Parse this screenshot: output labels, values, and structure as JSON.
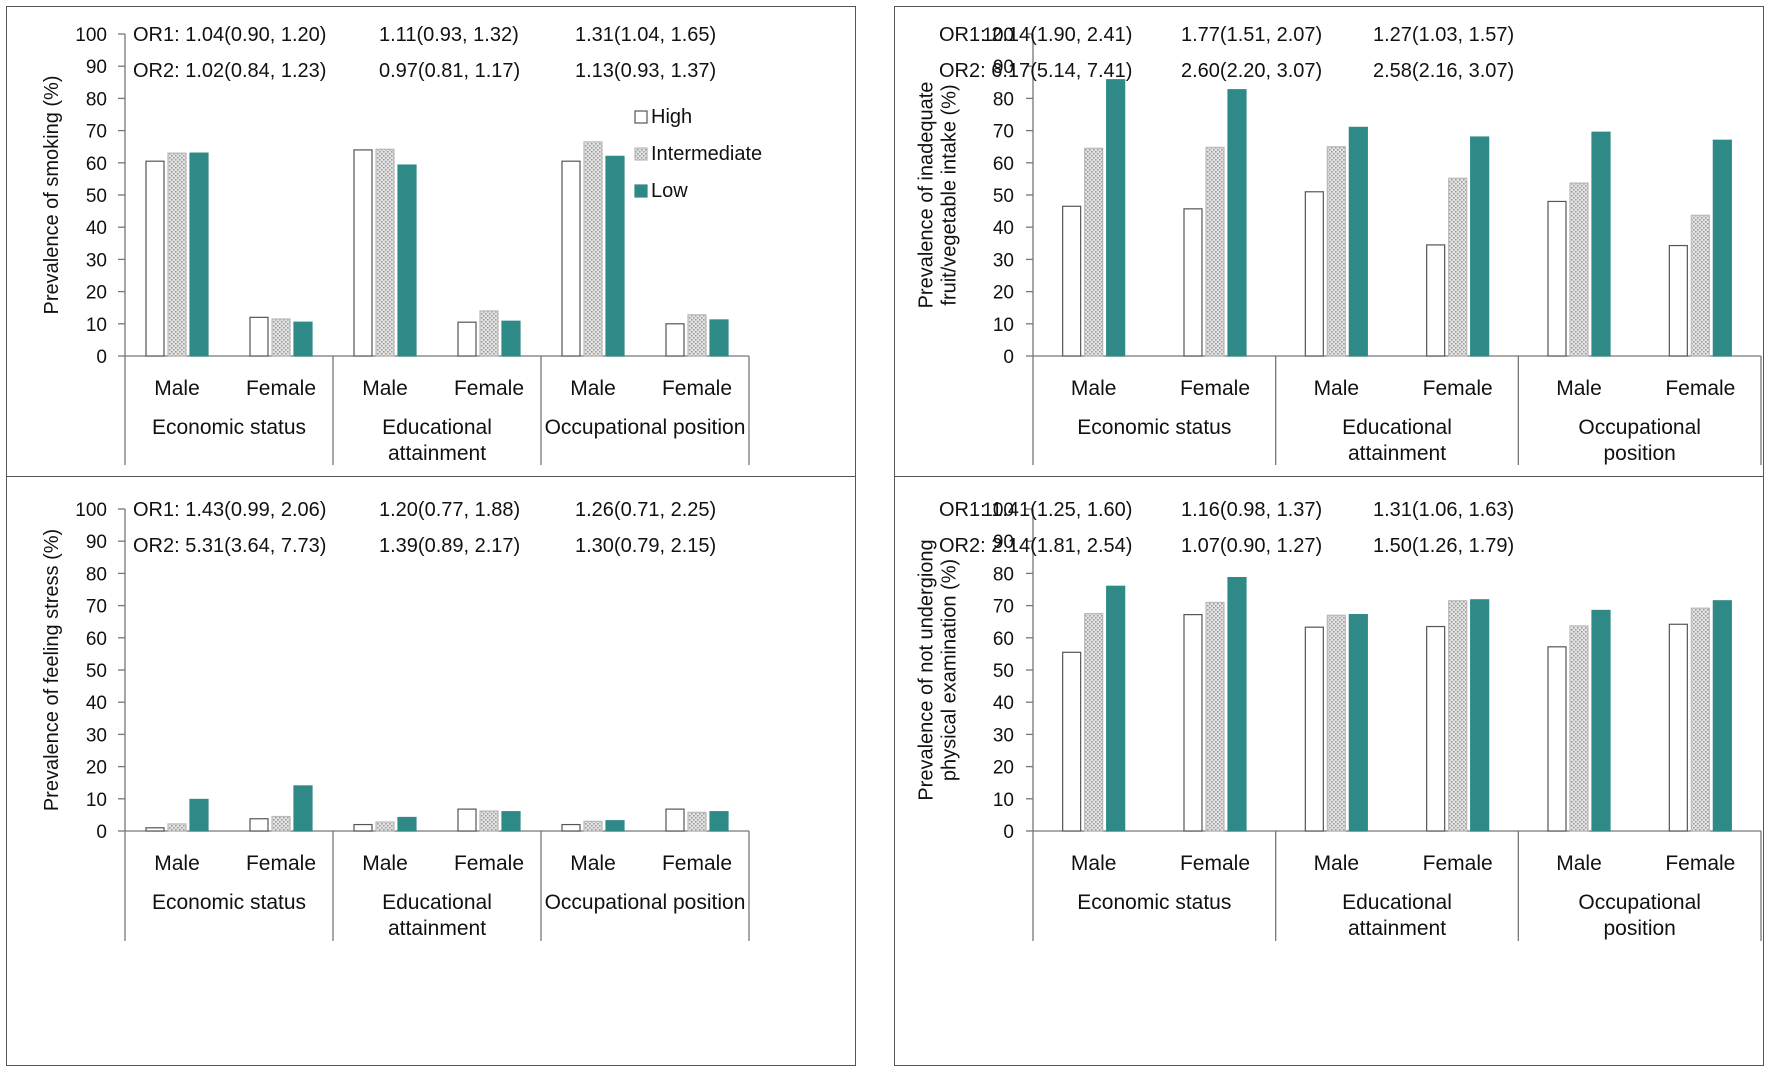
{
  "chart_data": [
    {
      "type": "bar",
      "ylabel": [
        "Prevalence of smoking (%)"
      ],
      "ylim": [
        0,
        100
      ],
      "yticks": [
        0,
        10,
        20,
        30,
        40,
        50,
        60,
        70,
        80,
        90,
        100
      ],
      "groups": [
        {
          "label": [
            "Economic status"
          ],
          "categories": [
            "Male",
            "Female"
          ]
        },
        {
          "label": [
            "Educational",
            "attainment"
          ],
          "categories": [
            "Male",
            "Female"
          ]
        },
        {
          "label": [
            "Occupational position"
          ],
          "categories": [
            "Male",
            "Female"
          ]
        }
      ],
      "series": [
        {
          "name": "High",
          "values": [
            60.5,
            12,
            64,
            10.5,
            60.5,
            10
          ]
        },
        {
          "name": "Intermediate",
          "values": [
            63,
            11.5,
            64.2,
            14,
            66.5,
            12.8
          ]
        },
        {
          "name": "Low",
          "values": [
            63,
            10.5,
            59.3,
            10.8,
            62,
            11.2
          ]
        }
      ],
      "legend": {
        "position": "top-right"
      },
      "annotations": {
        "or1": [
          "OR1: 1.04(0.90, 1.20)",
          "1.11(0.93, 1.32)",
          "1.31(1.04, 1.65)"
        ],
        "or2": [
          "OR2: 1.02(0.84, 1.23)",
          "0.97(0.81, 1.17)",
          "1.13(0.93, 1.37)"
        ]
      }
    },
    {
      "type": "bar",
      "ylabel": [
        "Prevalence of inadequate",
        "fruit/vegetable intake (%)"
      ],
      "ylim": [
        0,
        100
      ],
      "yticks": [
        0,
        10,
        20,
        30,
        40,
        50,
        60,
        70,
        80,
        90,
        100
      ],
      "groups": [
        {
          "label": [
            "Economic status"
          ],
          "categories": [
            "Male",
            "Female"
          ]
        },
        {
          "label": [
            "Educational",
            "attainment"
          ],
          "categories": [
            "Male",
            "Female"
          ]
        },
        {
          "label": [
            "Occupational",
            "position"
          ],
          "categories": [
            "Male",
            "Female"
          ]
        }
      ],
      "series": [
        {
          "name": "High",
          "values": [
            46.5,
            45.7,
            51,
            34.5,
            48,
            34.3
          ]
        },
        {
          "name": "Intermediate",
          "values": [
            64.5,
            64.8,
            65,
            55.2,
            53.7,
            43.7
          ]
        },
        {
          "name": "Low",
          "values": [
            85.8,
            82.7,
            71,
            68,
            69.5,
            67
          ]
        }
      ],
      "annotations": {
        "or1": [
          "OR1: 2.14(1.90, 2.41)",
          "1.77(1.51, 2.07)",
          "1.27(1.03, 1.57)"
        ],
        "or2": [
          "OR2: 6.17(5.14, 7.41)",
          "2.60(2.20, 3.07)",
          "2.58(2.16, 3.07)"
        ]
      }
    },
    {
      "type": "bar",
      "ylabel": [
        "Prevalence of feeling stress (%)"
      ],
      "ylim": [
        0,
        100
      ],
      "yticks": [
        0,
        10,
        20,
        30,
        40,
        50,
        60,
        70,
        80,
        90,
        100
      ],
      "groups": [
        {
          "label": [
            "Economic status"
          ],
          "categories": [
            "Male",
            "Female"
          ]
        },
        {
          "label": [
            "Educational",
            "attainment"
          ],
          "categories": [
            "Male",
            "Female"
          ]
        },
        {
          "label": [
            "Occupational position"
          ],
          "categories": [
            "Male",
            "Female"
          ]
        }
      ],
      "series": [
        {
          "name": "High",
          "values": [
            1,
            3.8,
            2,
            6.8,
            2,
            6.8
          ]
        },
        {
          "name": "Intermediate",
          "values": [
            2.2,
            4.5,
            2.8,
            6.2,
            3,
            5.8
          ]
        },
        {
          "name": "Low",
          "values": [
            9.8,
            14,
            4.2,
            6,
            3.2,
            6
          ]
        }
      ],
      "annotations": {
        "or1": [
          "OR1: 1.43(0.99, 2.06)",
          "1.20(0.77, 1.88)",
          "1.26(0.71, 2.25)"
        ],
        "or2": [
          "OR2: 5.31(3.64, 7.73)",
          "1.39(0.89, 2.17)",
          "1.30(0.79, 2.15)"
        ]
      }
    },
    {
      "type": "bar",
      "ylabel": [
        "Prevalence of not undergiong",
        "physical examination (%)"
      ],
      "ylim": [
        0,
        100
      ],
      "yticks": [
        0,
        10,
        20,
        30,
        40,
        50,
        60,
        70,
        80,
        90,
        100
      ],
      "groups": [
        {
          "label": [
            "Economic status"
          ],
          "categories": [
            "Male",
            "Female"
          ]
        },
        {
          "label": [
            "Educational",
            "attainment"
          ],
          "categories": [
            "Male",
            "Female"
          ]
        },
        {
          "label": [
            "Occupational",
            "position"
          ],
          "categories": [
            "Male",
            "Female"
          ]
        }
      ],
      "series": [
        {
          "name": "High",
          "values": [
            55.5,
            67.2,
            63.3,
            63.5,
            57.2,
            64.2
          ]
        },
        {
          "name": "Intermediate",
          "values": [
            67.5,
            71,
            67,
            71.5,
            63.7,
            69.2
          ]
        },
        {
          "name": "Low",
          "values": [
            76,
            78.7,
            67.2,
            71.8,
            68.5,
            71.5
          ]
        }
      ],
      "annotations": {
        "or1": [
          "OR1: 1.41(1.25, 1.60)",
          "1.16(0.98, 1.37)",
          "1.31(1.06, 1.63)"
        ],
        "or2": [
          "OR2: 2.14(1.81, 2.54)",
          "1.07(0.90, 1.27)",
          "1.50(1.26, 1.79)"
        ]
      }
    }
  ],
  "colors": {
    "high": "#ffffff",
    "intermediate": "#d9d9d9",
    "low": "#2f8a87",
    "outline": "#555555",
    "axis": "#777777"
  },
  "bar_patterns": {
    "intermediate": "stippled"
  }
}
